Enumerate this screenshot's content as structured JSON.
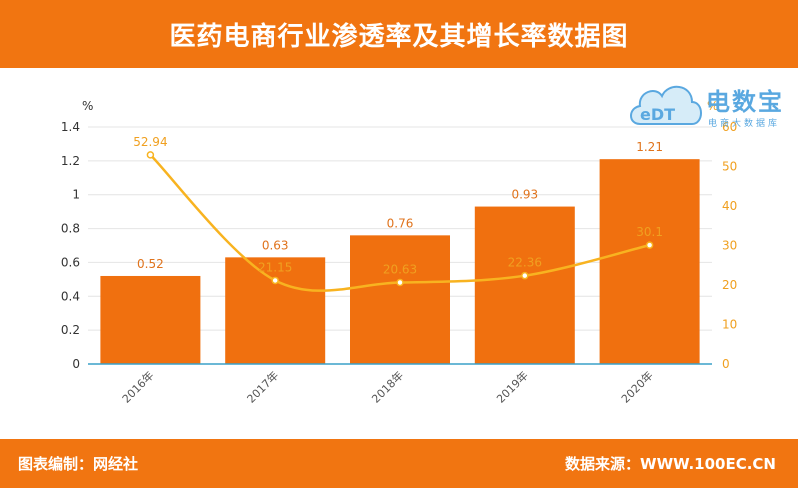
{
  "header": {
    "title": "医药电商行业渗透率及其增长率数据图"
  },
  "footer": {
    "left": "图表编制：网经社",
    "right": "数据来源：WWW.100EC.CN"
  },
  "watermark": {
    "name": "电数宝",
    "subtitle": "电商大数据库",
    "logo_text": "eDT"
  },
  "colors": {
    "brand": "#f17511",
    "bar": "#f0700f",
    "line": "#f8b320",
    "axis_right": "#f0a020",
    "watermark": "#5aa8e0"
  },
  "chart_data": {
    "type": "bar",
    "categories": [
      "2016年",
      "2017年",
      "2018年",
      "2019年",
      "2020年"
    ],
    "series": [
      {
        "type": "bar",
        "axis": "left",
        "values": [
          0.52,
          0.63,
          0.76,
          0.93,
          1.21
        ]
      },
      {
        "type": "line",
        "axis": "right",
        "values": [
          52.94,
          21.15,
          20.63,
          22.36,
          30.1
        ]
      }
    ],
    "y_left": {
      "unit": "%",
      "ylim": [
        0,
        1.4
      ],
      "ticks": [
        "0",
        "0.2",
        "0.4",
        "0.6",
        "0.8",
        "1",
        "1.2",
        "1.4"
      ]
    },
    "y_right": {
      "unit": "%",
      "ylim": [
        0,
        60
      ],
      "ticks": [
        "0",
        "10",
        "20",
        "30",
        "40",
        "50",
        "60"
      ]
    },
    "grid": true
  }
}
